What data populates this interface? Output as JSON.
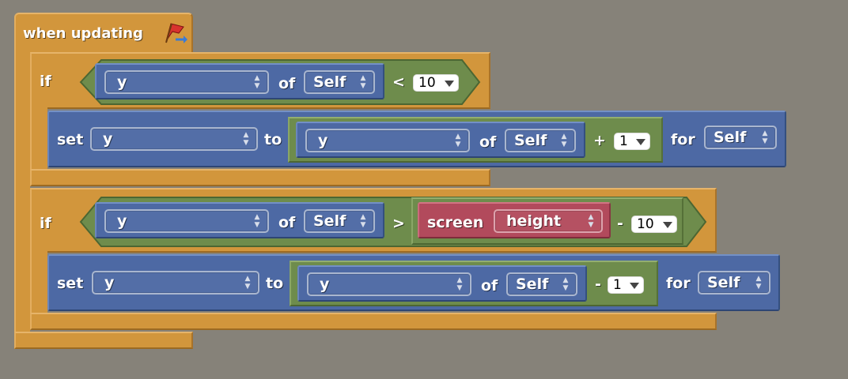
{
  "hat": {
    "label": "when updating",
    "icon": "red-flag-arrow-icon"
  },
  "blocks": [
    {
      "if_label": "if",
      "cond": {
        "prop": "y",
        "of": "of",
        "target": "Self",
        "op": "<",
        "rhs": {
          "value": "10"
        }
      },
      "action": {
        "set": "set",
        "var": "y",
        "to": "to",
        "expr": {
          "prop": "y",
          "of": "of",
          "target": "Self",
          "op": "+",
          "value": "1"
        },
        "for": "for",
        "for_target": "Self"
      }
    },
    {
      "if_label": "if",
      "cond": {
        "prop": "y",
        "of": "of",
        "target": "Self",
        "op": ">",
        "screen": "screen",
        "screen_prop": "height",
        "minus": "-",
        "rhs": {
          "value": "10"
        }
      },
      "action": {
        "set": "set",
        "var": "y",
        "to": "to",
        "expr": {
          "prop": "y",
          "of": "of",
          "target": "Self",
          "op": "-",
          "value": "1"
        },
        "for": "for",
        "for_target": "Self"
      }
    }
  ],
  "colors": {
    "background": "#868279",
    "control": "#d2963c",
    "motion": "#4d69a4",
    "operator": "#6e8c4c",
    "sensing": "#b24a5c"
  }
}
